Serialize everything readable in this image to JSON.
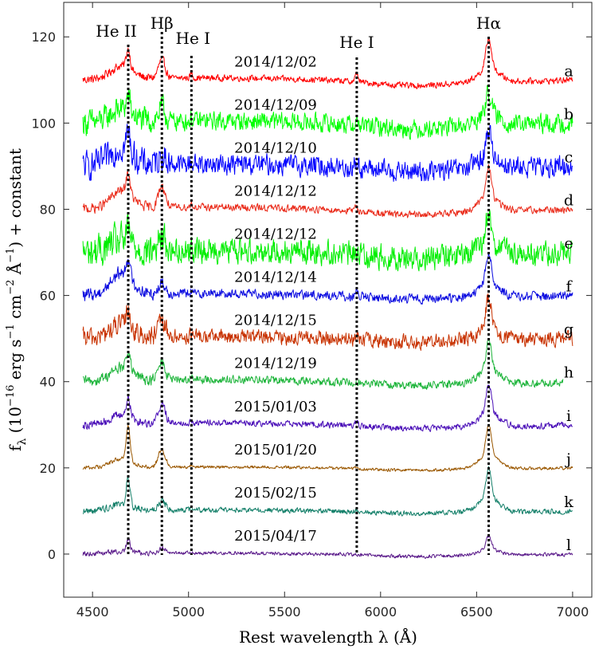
{
  "chart_data": {
    "type": "line",
    "xlabel": "Rest wavelength λ (Å)",
    "ylabel": "f_λ (10^-16 erg s^-1 cm^-2 Å^-1) + constant",
    "ylabel_parts": {
      "f": "f",
      "lambda_sub": "λ",
      "open": " (10",
      "exp1": "−16",
      "erg": " erg s",
      "exp2": "−1",
      "cm": " cm",
      "exp3": "−2",
      "ang": " Å",
      "exp4": "−1",
      "close": ")  +  constant"
    },
    "xlim": [
      4350,
      7100
    ],
    "ylim": [
      -10,
      128
    ],
    "x_ticks": [
      4500,
      5000,
      5500,
      6000,
      6500,
      7000
    ],
    "x_tick_labels": [
      "4500",
      "5000",
      "5500",
      "6000",
      "6500",
      "7000"
    ],
    "y_ticks": [
      0,
      20,
      40,
      60,
      80,
      100,
      120
    ],
    "y_tick_labels": [
      "0",
      "20",
      "40",
      "60",
      "80",
      "100",
      "120"
    ],
    "line_markers": [
      {
        "name": "He II",
        "wavelength": 4686,
        "label": "He II"
      },
      {
        "name": "Hβ",
        "wavelength": 4861,
        "label": "Hβ"
      },
      {
        "name": "He I",
        "wavelength": 5015,
        "label": "He I"
      },
      {
        "name": "He I",
        "wavelength": 5876,
        "label": "He I"
      },
      {
        "name": "Hα",
        "wavelength": 6563,
        "label": "Hα"
      }
    ],
    "series": [
      {
        "name": "a",
        "date": "2014/12/02",
        "offset": 110,
        "color": "#ff0000",
        "x_range": [
          4450,
          7000
        ],
        "noise": 0.6,
        "hb": 4.2,
        "hei": 1.2,
        "heii": 4.5,
        "broad": 3.0,
        "ha": 7.0,
        "hei2": 2.0
      },
      {
        "name": "b",
        "date": "2014/12/09",
        "offset": 100,
        "color": "#00ff00",
        "x_range": [
          4450,
          7000
        ],
        "noise": 1.8,
        "hb": 3.0,
        "hei": 0.5,
        "heii": 3.5,
        "broad": 3.0,
        "ha": 5.5,
        "hei2": 0.8
      },
      {
        "name": "c",
        "date": "2014/12/10",
        "offset": 90,
        "color": "#0000ff",
        "x_range": [
          4450,
          7000
        ],
        "noise": 2.0,
        "hb": 2.0,
        "hei": 0.5,
        "heii": 4.5,
        "broad": 4.0,
        "ha": 6.0,
        "hei2": 1.5
      },
      {
        "name": "d",
        "date": "2014/12/12",
        "offset": 80,
        "color": "#ea2b1a",
        "x_range": [
          4450,
          7000
        ],
        "noise": 0.7,
        "hb": 5.0,
        "hei": 1.0,
        "heii": 5.0,
        "broad": 4.0,
        "ha": 7.0,
        "hei2": 1.0
      },
      {
        "name": "e",
        "date": "2014/12/12",
        "offset": 70,
        "color": "#00ee00",
        "x_range": [
          4450,
          7000
        ],
        "noise": 2.4,
        "hb": 3.0,
        "hei": 0.5,
        "heii": 3.0,
        "broad": 2.5,
        "ha": 6.5,
        "hei2": 1.0
      },
      {
        "name": "f",
        "date": "2014/12/14",
        "offset": 60,
        "color": "#0a0ae0",
        "x_range": [
          4450,
          7000
        ],
        "noise": 0.9,
        "hb": 2.5,
        "hei": 0.4,
        "heii": 4.5,
        "broad": 5.0,
        "ha": 7.0,
        "hei2": 1.0
      },
      {
        "name": "g",
        "date": "2014/12/15",
        "offset": 50,
        "color": "#c83200",
        "x_range": [
          4450,
          7000
        ],
        "noise": 1.4,
        "hb": 3.5,
        "hei": 0.4,
        "heii": 4.0,
        "broad": 3.0,
        "ha": 7.0,
        "hei2": 0.5
      },
      {
        "name": "h",
        "date": "2014/12/19",
        "offset": 40,
        "color": "#1fb53c",
        "x_range": [
          4450,
          6950
        ],
        "noise": 0.8,
        "hb": 4.0,
        "hei": 0.5,
        "heii": 4.5,
        "broad": 3.0,
        "ha": 7.0,
        "hei2": 0.5
      },
      {
        "name": "i",
        "date": "2015/01/03",
        "offset": 30,
        "color": "#4b10b8",
        "x_range": [
          4450,
          7000
        ],
        "noise": 0.6,
        "hb": 4.5,
        "hei": 0.3,
        "heii": 4.5,
        "broad": 2.0,
        "ha": 7.0,
        "hei2": 1.0
      },
      {
        "name": "j",
        "date": "2015/01/20",
        "offset": 20,
        "color": "#9a5700",
        "x_range": [
          4450,
          7000
        ],
        "noise": 0.3,
        "hb": 4.0,
        "hei": 0.2,
        "heii": 8.0,
        "broad": 2.0,
        "ha": 7.0,
        "hei2": 0.5
      },
      {
        "name": "k",
        "date": "2015/02/15",
        "offset": 10,
        "color": "#15806a",
        "x_range": [
          4450,
          7000
        ],
        "noise": 0.5,
        "hb": 2.0,
        "hei": 0.2,
        "heii": 6.5,
        "broad": 1.5,
        "ha": 7.0,
        "hei2": 0.3
      },
      {
        "name": "l",
        "date": "2015/04/17",
        "offset": 0,
        "color": "#5a1a8a",
        "x_range": [
          4450,
          7000
        ],
        "noise": 0.35,
        "hb": 1.0,
        "hei": 0.1,
        "heii": 2.8,
        "broad": 0.5,
        "ha": 3.0,
        "hei2": 0.2
      }
    ]
  }
}
